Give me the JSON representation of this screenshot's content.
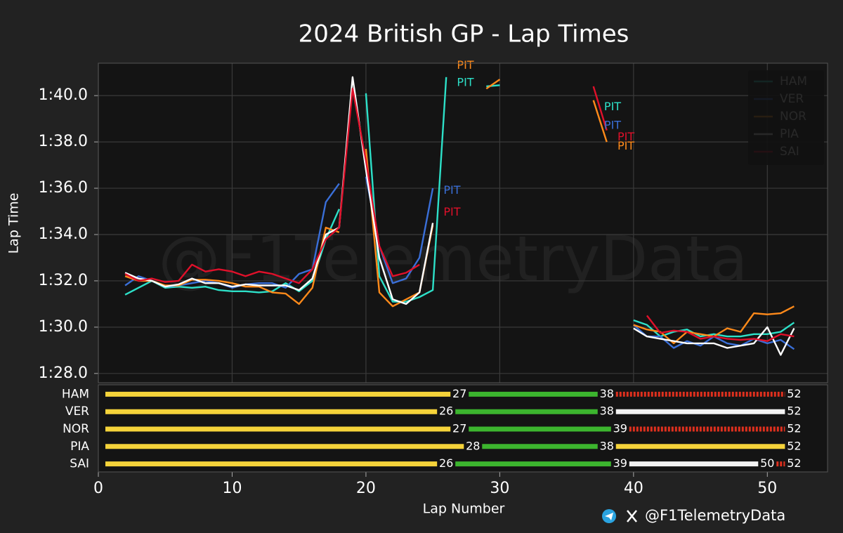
{
  "chart_data": [
    {
      "type": "line",
      "title": "2024 British GP - Lap Times",
      "ylabel": "Lap Time",
      "watermark": "@F1TelemetryData",
      "xlim": [
        0,
        54.5
      ],
      "xticks": [
        0,
        10,
        20,
        30,
        40,
        50
      ],
      "ylim": [
        87.6,
        101.4
      ],
      "yticks": [
        {
          "value": 88,
          "label": "1:28.0"
        },
        {
          "value": 90,
          "label": "1:30.0"
        },
        {
          "value": 92,
          "label": "1:32.0"
        },
        {
          "value": 94,
          "label": "1:34.0"
        },
        {
          "value": 96,
          "label": "1:36.0"
        },
        {
          "value": 98,
          "label": "1:38.0"
        },
        {
          "value": 100,
          "label": "1:40.0"
        }
      ],
      "grid": true,
      "legend": "upper right",
      "x": [
        2,
        3,
        4,
        5,
        6,
        7,
        8,
        9,
        10,
        11,
        12,
        13,
        14,
        15,
        16,
        17,
        18,
        19,
        20,
        21,
        22,
        23,
        24,
        25,
        26,
        27,
        28,
        29,
        30,
        31,
        32,
        33,
        34,
        35,
        36,
        37,
        38,
        39,
        40,
        41,
        42,
        43,
        44,
        45,
        46,
        47,
        48,
        49,
        50,
        51,
        52
      ],
      "series": [
        {
          "name": "HAM",
          "color": "#2de0c8",
          "values": [
            91.4,
            91.7,
            92.0,
            91.7,
            91.75,
            91.7,
            91.75,
            91.6,
            91.55,
            91.55,
            91.5,
            91.55,
            91.9,
            91.55,
            92.0,
            93.8,
            95.1,
            null,
            100.1,
            92.2,
            91.1,
            91.1,
            91.3,
            91.6,
            100.8,
            null,
            null,
            100.4,
            100.45,
            null,
            null,
            null,
            null,
            null,
            null,
            null,
            null,
            null,
            90.3,
            90.1,
            89.6,
            89.8,
            89.9,
            89.6,
            89.7,
            89.6,
            89.6,
            89.7,
            89.7,
            89.8,
            90.2
          ]
        },
        {
          "name": "VER",
          "color": "#3a6fd8",
          "values": [
            91.8,
            92.2,
            92.0,
            91.75,
            91.8,
            91.9,
            92.0,
            91.9,
            91.7,
            91.85,
            91.9,
            91.9,
            91.7,
            92.3,
            92.5,
            95.4,
            96.2,
            null,
            96.5,
            93.5,
            91.9,
            92.1,
            93.0,
            96.0,
            null,
            null,
            null,
            null,
            null,
            null,
            null,
            null,
            null,
            null,
            null,
            null,
            null,
            null,
            90.1,
            89.6,
            89.6,
            89.1,
            89.4,
            89.2,
            89.6,
            89.3,
            89.2,
            89.5,
            89.3,
            89.45,
            89.05
          ]
        },
        {
          "name": "NOR",
          "color": "#ff8a1a",
          "values": [
            92.2,
            92.0,
            92.0,
            91.8,
            91.8,
            92.05,
            92.05,
            92.0,
            91.9,
            91.75,
            91.75,
            91.5,
            91.45,
            91.0,
            91.7,
            94.3,
            94.1,
            null,
            97.7,
            91.5,
            90.9,
            91.2,
            91.5,
            94.4,
            null,
            null,
            null,
            100.3,
            100.7,
            null,
            null,
            null,
            null,
            null,
            null,
            99.8,
            98.0,
            null,
            90.1,
            89.9,
            89.8,
            89.3,
            89.8,
            89.7,
            89.6,
            89.95,
            89.8,
            90.6,
            90.55,
            90.6,
            90.9
          ]
        },
        {
          "name": "PIA",
          "color": "#ffffff",
          "values": [
            92.35,
            92.1,
            92.0,
            91.75,
            91.85,
            92.1,
            91.9,
            91.9,
            91.75,
            91.85,
            91.8,
            91.8,
            91.8,
            91.6,
            92.1,
            94.0,
            94.3,
            100.8,
            96.8,
            93.0,
            91.2,
            91.0,
            91.5,
            94.5,
            null,
            null,
            null,
            null,
            null,
            null,
            null,
            null,
            null,
            null,
            null,
            null,
            null,
            null,
            89.95,
            89.6,
            89.5,
            89.4,
            89.3,
            89.3,
            89.3,
            89.1,
            89.2,
            89.3,
            90.0,
            88.8,
            89.95
          ]
        },
        {
          "name": "SAI",
          "color": "#e0102a",
          "values": [
            92.3,
            92.0,
            92.1,
            91.95,
            92.0,
            92.7,
            92.4,
            92.5,
            92.4,
            92.2,
            92.4,
            92.3,
            92.1,
            91.9,
            92.5,
            93.8,
            94.3,
            100.3,
            97.2,
            93.5,
            92.2,
            92.35,
            92.7,
            null,
            null,
            null,
            null,
            null,
            null,
            null,
            null,
            null,
            null,
            null,
            null,
            100.4,
            98.5,
            null,
            null,
            90.5,
            89.75,
            89.85,
            89.8,
            89.5,
            89.6,
            89.5,
            89.45,
            89.5,
            89.4,
            89.7,
            89.6
          ]
        }
      ],
      "annotations": [
        {
          "text": "PIT",
          "x": 26.8,
          "y": 101.3,
          "color": "#ff8a1a"
        },
        {
          "text": "PIT",
          "x": 26.8,
          "y": 100.55,
          "color": "#2de0c8"
        },
        {
          "text": "PIT",
          "x": 25.8,
          "y": 95.9,
          "color": "#3a6fd8"
        },
        {
          "text": "PIT",
          "x": 25.8,
          "y": 94.95,
          "color": "#e0102a"
        },
        {
          "text": "PIT",
          "x": 37.8,
          "y": 99.5,
          "color": "#2de0c8"
        },
        {
          "text": "PIT",
          "x": 37.8,
          "y": 98.7,
          "color": "#3a6fd8"
        },
        {
          "text": "PIT",
          "x": 38.8,
          "y": 98.2,
          "color": "#e0102a"
        },
        {
          "text": "PIT",
          "x": 38.8,
          "y": 97.8,
          "color": "#ff8a1a"
        }
      ]
    },
    {
      "type": "stint",
      "xlabel": "Lap Number",
      "credit": "@F1TelemetryData",
      "xlim": [
        0,
        54.5
      ],
      "xticks": [
        0,
        10,
        20,
        30,
        40,
        50
      ],
      "categories": [
        "HAM",
        "VER",
        "NOR",
        "PIA",
        "SAI"
      ],
      "stints": [
        [
          {
            "end": 27,
            "color": "#f5d33a"
          },
          {
            "end": 38,
            "color": "#3cb52e"
          },
          {
            "end": 52,
            "color": "#e0301e",
            "dashed": true
          }
        ],
        [
          {
            "end": 26,
            "color": "#f5d33a"
          },
          {
            "end": 38,
            "color": "#3cb52e"
          },
          {
            "end": 52,
            "color": "#f2f2f2"
          }
        ],
        [
          {
            "end": 27,
            "color": "#f5d33a"
          },
          {
            "end": 39,
            "color": "#3cb52e"
          },
          {
            "end": 52,
            "color": "#e0301e",
            "dashed": true
          }
        ],
        [
          {
            "end": 28,
            "color": "#f5d33a"
          },
          {
            "end": 38,
            "color": "#3cb52e"
          },
          {
            "end": 52,
            "color": "#f5d33a"
          }
        ],
        [
          {
            "end": 26,
            "color": "#f5d33a"
          },
          {
            "end": 39,
            "color": "#3cb52e"
          },
          {
            "end": 50,
            "color": "#f2f2f2"
          },
          {
            "end": 52,
            "color": "#e0301e",
            "dashed": true
          }
        ]
      ]
    }
  ]
}
